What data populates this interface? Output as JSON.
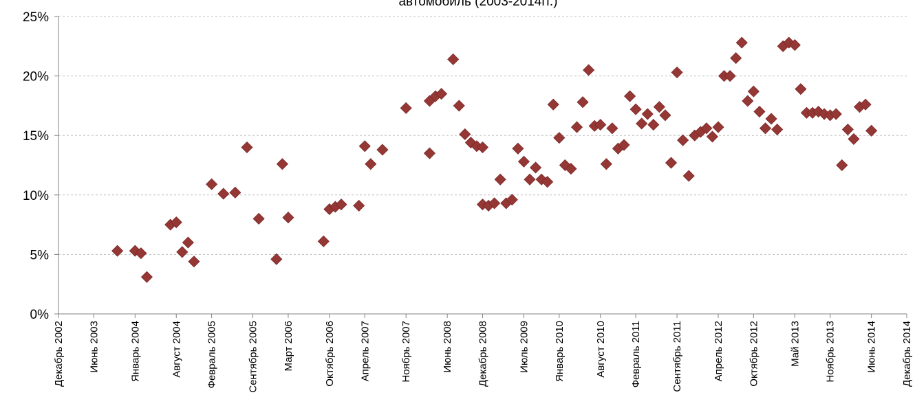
{
  "chart_data": {
    "type": "scatter",
    "title": "автомобиль (2003-2014гг.)",
    "xlabel": "",
    "ylabel": "",
    "ylim": [
      0,
      25
    ],
    "xlim": [
      "2002-12",
      "2014-12"
    ],
    "grid": "horizontal dashed",
    "legend": "none",
    "marker": "diamond",
    "color": "#953735",
    "y_tick_labels": [
      "0%",
      "5%",
      "10%",
      "15%",
      "20%",
      "25%"
    ],
    "y_ticks": [
      0,
      5,
      10,
      15,
      20,
      25
    ],
    "x_tick_labels": [
      "Декабрь 2002",
      "Июнь 2003",
      "Январь 2004",
      "Август 2004",
      "Февраль 2005",
      "Сентябрь 2005",
      "Март 2006",
      "Октябрь 2006",
      "Апрель 2007",
      "Ноябрь 2007",
      "Июнь 2008",
      "Декабрь 2008",
      "Июль 2009",
      "Январь 2010",
      "Август 2010",
      "Февраль 2011",
      "Сентябрь 2011",
      "Апрель 2012",
      "Октябрь 2012",
      "Май 2013",
      "Ноябрь 2013",
      "Июнь 2014",
      "Декабрь 2014"
    ],
    "x_ticks": [
      "2002-12",
      "2003-06",
      "2004-01",
      "2004-08",
      "2005-02",
      "2005-09",
      "2006-03",
      "2006-10",
      "2007-04",
      "2007-11",
      "2008-06",
      "2008-12",
      "2009-07",
      "2010-01",
      "2010-08",
      "2011-02",
      "2011-09",
      "2012-04",
      "2012-10",
      "2013-05",
      "2013-11",
      "2014-06",
      "2014-12"
    ],
    "series": [
      {
        "points": [
          {
            "x": "2003-10",
            "y": 5.3
          },
          {
            "x": "2004-01",
            "y": 5.3
          },
          {
            "x": "2004-02",
            "y": 5.1
          },
          {
            "x": "2004-03",
            "y": 3.1
          },
          {
            "x": "2004-07",
            "y": 7.5
          },
          {
            "x": "2004-08",
            "y": 7.7
          },
          {
            "x": "2004-09",
            "y": 5.2
          },
          {
            "x": "2004-10",
            "y": 6.0
          },
          {
            "x": "2004-11",
            "y": 4.4
          },
          {
            "x": "2005-02",
            "y": 10.9
          },
          {
            "x": "2005-04",
            "y": 10.1
          },
          {
            "x": "2005-06",
            "y": 10.2
          },
          {
            "x": "2005-08",
            "y": 14.0
          },
          {
            "x": "2005-10",
            "y": 8.0
          },
          {
            "x": "2006-01",
            "y": 4.6
          },
          {
            "x": "2006-02",
            "y": 12.6
          },
          {
            "x": "2006-03",
            "y": 8.1
          },
          {
            "x": "2006-09",
            "y": 6.1
          },
          {
            "x": "2006-10",
            "y": 8.8
          },
          {
            "x": "2006-11",
            "y": 9.0
          },
          {
            "x": "2006-12",
            "y": 9.2
          },
          {
            "x": "2007-03",
            "y": 9.1
          },
          {
            "x": "2007-04",
            "y": 14.1
          },
          {
            "x": "2007-05",
            "y": 12.6
          },
          {
            "x": "2007-07",
            "y": 13.8
          },
          {
            "x": "2007-11",
            "y": 17.3
          },
          {
            "x": "2008-03",
            "y": 13.5
          },
          {
            "x": "2008-03",
            "y": 17.9
          },
          {
            "x": "2008-04",
            "y": 18.3
          },
          {
            "x": "2008-05",
            "y": 18.5
          },
          {
            "x": "2008-07",
            "y": 21.4
          },
          {
            "x": "2008-08",
            "y": 17.5
          },
          {
            "x": "2008-09",
            "y": 15.1
          },
          {
            "x": "2008-10",
            "y": 14.4
          },
          {
            "x": "2008-11",
            "y": 14.1
          },
          {
            "x": "2008-12",
            "y": 14.0
          },
          {
            "x": "2008-12",
            "y": 9.2
          },
          {
            "x": "2009-01",
            "y": 9.1
          },
          {
            "x": "2009-02",
            "y": 9.3
          },
          {
            "x": "2009-03",
            "y": 11.3
          },
          {
            "x": "2009-04",
            "y": 9.3
          },
          {
            "x": "2009-05",
            "y": 9.6
          },
          {
            "x": "2009-06",
            "y": 13.9
          },
          {
            "x": "2009-07",
            "y": 12.8
          },
          {
            "x": "2009-08",
            "y": 11.3
          },
          {
            "x": "2009-09",
            "y": 12.3
          },
          {
            "x": "2009-10",
            "y": 11.3
          },
          {
            "x": "2009-11",
            "y": 11.1
          },
          {
            "x": "2009-12",
            "y": 17.6
          },
          {
            "x": "2010-01",
            "y": 14.8
          },
          {
            "x": "2010-02",
            "y": 12.5
          },
          {
            "x": "2010-03",
            "y": 12.2
          },
          {
            "x": "2010-04",
            "y": 15.7
          },
          {
            "x": "2010-05",
            "y": 17.8
          },
          {
            "x": "2010-06",
            "y": 20.5
          },
          {
            "x": "2010-07",
            "y": 15.8
          },
          {
            "x": "2010-08",
            "y": 15.9
          },
          {
            "x": "2010-09",
            "y": 12.6
          },
          {
            "x": "2010-10",
            "y": 15.6
          },
          {
            "x": "2010-11",
            "y": 13.9
          },
          {
            "x": "2010-12",
            "y": 14.2
          },
          {
            "x": "2011-01",
            "y": 18.3
          },
          {
            "x": "2011-02",
            "y": 17.2
          },
          {
            "x": "2011-03",
            "y": 16.0
          },
          {
            "x": "2011-04",
            "y": 16.8
          },
          {
            "x": "2011-05",
            "y": 15.9
          },
          {
            "x": "2011-06",
            "y": 17.4
          },
          {
            "x": "2011-07",
            "y": 16.7
          },
          {
            "x": "2011-08",
            "y": 12.7
          },
          {
            "x": "2011-09",
            "y": 20.3
          },
          {
            "x": "2011-10",
            "y": 14.6
          },
          {
            "x": "2011-11",
            "y": 11.6
          },
          {
            "x": "2011-12",
            "y": 15.0
          },
          {
            "x": "2012-01",
            "y": 15.3
          },
          {
            "x": "2012-02",
            "y": 15.6
          },
          {
            "x": "2012-03",
            "y": 14.9
          },
          {
            "x": "2012-04",
            "y": 15.7
          },
          {
            "x": "2012-05",
            "y": 20.0
          },
          {
            "x": "2012-06",
            "y": 20.0
          },
          {
            "x": "2012-07",
            "y": 21.5
          },
          {
            "x": "2012-08",
            "y": 22.8
          },
          {
            "x": "2012-09",
            "y": 17.9
          },
          {
            "x": "2012-10",
            "y": 18.7
          },
          {
            "x": "2012-11",
            "y": 17.0
          },
          {
            "x": "2012-12",
            "y": 15.6
          },
          {
            "x": "2013-01",
            "y": 16.4
          },
          {
            "x": "2013-02",
            "y": 15.5
          },
          {
            "x": "2013-03",
            "y": 22.5
          },
          {
            "x": "2013-04",
            "y": 22.8
          },
          {
            "x": "2013-05",
            "y": 22.6
          },
          {
            "x": "2013-06",
            "y": 18.9
          },
          {
            "x": "2013-07",
            "y": 16.9
          },
          {
            "x": "2013-08",
            "y": 16.9
          },
          {
            "x": "2013-09",
            "y": 17.0
          },
          {
            "x": "2013-10",
            "y": 16.8
          },
          {
            "x": "2013-11",
            "y": 16.7
          },
          {
            "x": "2013-12",
            "y": 16.8
          },
          {
            "x": "2014-01",
            "y": 12.5
          },
          {
            "x": "2014-02",
            "y": 15.5
          },
          {
            "x": "2014-03",
            "y": 14.7
          },
          {
            "x": "2014-04",
            "y": 17.4
          },
          {
            "x": "2014-05",
            "y": 17.6
          },
          {
            "x": "2014-06",
            "y": 15.4
          }
        ]
      }
    ]
  }
}
